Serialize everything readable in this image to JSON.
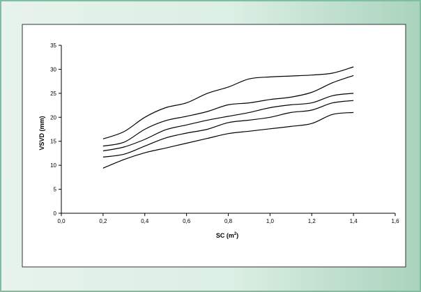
{
  "chart_data": {
    "type": "line",
    "xlabel": "SC (m",
    "xlabel_superscript": "2",
    "xlabel_suffix": ")",
    "ylabel": "VSVD (mm)",
    "xlim": [
      0,
      1.6
    ],
    "ylim": [
      0,
      35
    ],
    "x_ticks": [
      "0,0",
      "0,2",
      "0,4",
      "0,6",
      "0,8",
      "1,0",
      "1,2",
      "1,4",
      "1,6"
    ],
    "y_ticks": [
      "0",
      "5",
      "10",
      "15",
      "20",
      "25",
      "30",
      "35"
    ],
    "grid": false,
    "legend": "none",
    "line_color": "#000000",
    "series": [
      {
        "x": [
          0.2,
          0.3,
          0.4,
          0.5,
          0.6,
          0.7,
          0.8,
          0.9,
          1.0,
          1.1,
          1.2,
          1.3,
          1.4
        ],
        "values": [
          15.5,
          17.0,
          20.0,
          22.0,
          23.0,
          25.0,
          26.3,
          28.0,
          28.4,
          28.6,
          28.8,
          29.2,
          30.5
        ]
      },
      {
        "x": [
          0.2,
          0.3,
          0.4,
          0.5,
          0.6,
          0.7,
          0.8,
          0.9,
          1.0,
          1.1,
          1.2,
          1.3,
          1.4
        ],
        "values": [
          14.0,
          14.8,
          17.5,
          19.3,
          20.2,
          21.2,
          22.6,
          23.0,
          23.7,
          24.2,
          25.2,
          27.2,
          28.7
        ]
      },
      {
        "x": [
          0.2,
          0.3,
          0.4,
          0.5,
          0.6,
          0.7,
          0.8,
          0.9,
          1.0,
          1.1,
          1.2,
          1.3,
          1.4
        ],
        "values": [
          13.0,
          13.8,
          15.4,
          17.4,
          18.4,
          19.4,
          20.2,
          21.0,
          22.0,
          22.6,
          23.0,
          24.5,
          25.0
        ]
      },
      {
        "x": [
          0.2,
          0.3,
          0.4,
          0.5,
          0.6,
          0.7,
          0.8,
          0.9,
          1.0,
          1.1,
          1.2,
          1.3,
          1.4
        ],
        "values": [
          11.7,
          12.3,
          14.0,
          15.7,
          16.7,
          17.5,
          18.9,
          19.4,
          20.0,
          21.0,
          21.5,
          23.0,
          23.5
        ]
      },
      {
        "x": [
          0.2,
          0.3,
          0.4,
          0.5,
          0.6,
          0.7,
          0.8,
          0.9,
          1.0,
          1.1,
          1.2,
          1.3,
          1.4
        ],
        "values": [
          9.4,
          11.2,
          12.6,
          13.6,
          14.6,
          15.6,
          16.6,
          17.1,
          17.6,
          18.1,
          18.7,
          20.6,
          21.0
        ]
      }
    ]
  }
}
